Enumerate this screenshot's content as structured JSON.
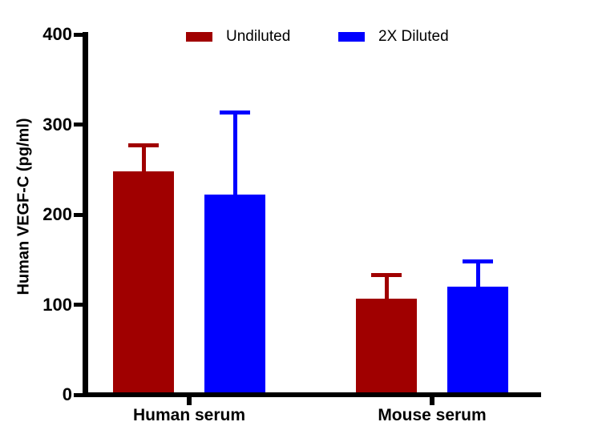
{
  "chart_data": {
    "type": "bar",
    "title": "",
    "ylabel": "Human VEGF-C (pg/ml)",
    "xlabel": "",
    "ylim": [
      0,
      400
    ],
    "yticks": [
      400,
      300,
      200,
      100,
      0
    ],
    "ytick_labels": [
      "400",
      "300",
      "200",
      "100",
      "0"
    ],
    "categories": [
      "Human serum",
      "Mouse serum"
    ],
    "series": [
      {
        "name": "Undiluted",
        "color": "#A00000",
        "values": [
          248,
          107
        ],
        "error_up": [
          29,
          26
        ]
      },
      {
        "name": "2X Diluted",
        "color": "#0000FF",
        "values": [
          222,
          120
        ],
        "error_up": [
          91,
          28
        ]
      }
    ],
    "error_bar_tops": {
      "Undiluted": [
        277,
        133
      ],
      "2X Diluted": [
        313,
        148
      ]
    },
    "legend_position": "top",
    "grid": false,
    "axis_color": "#000000",
    "background_color": "#FFFFFF"
  }
}
